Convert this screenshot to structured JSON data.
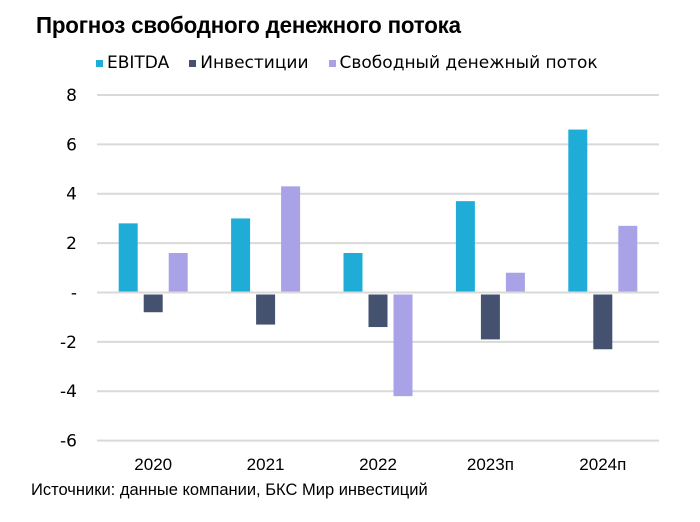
{
  "chart_data": {
    "type": "bar",
    "title": "Прогноз свободного денежного потока",
    "xlabel": "",
    "ylabel": "",
    "categories": [
      "2020",
      "2021",
      "2022",
      "2023п",
      "2024п"
    ],
    "series": [
      {
        "name": "EBITDA",
        "color": "#1fadd8",
        "values": [
          2.8,
          3.0,
          1.6,
          3.7,
          6.6
        ]
      },
      {
        "name": "Инвестиции",
        "color": "#44516f",
        "values": [
          -0.8,
          -1.3,
          -1.4,
          -1.9,
          -2.3
        ]
      },
      {
        "name": "Свободный денежный поток",
        "color": "#a9a2e6",
        "values": [
          1.6,
          4.3,
          -4.2,
          0.8,
          2.7
        ]
      }
    ],
    "ylim": [
      -6,
      8
    ],
    "yticks": [
      8,
      6,
      4,
      2,
      0,
      -2,
      -4,
      -6
    ],
    "ytick_labels": [
      "8",
      "6",
      "4",
      "2",
      "-",
      "-2",
      "-4",
      "-6"
    ],
    "grid": true,
    "gridline_color": "#d9d9d9",
    "legend_position": "top"
  },
  "source": "Источники: данные компании, БКС Мир инвестиций"
}
